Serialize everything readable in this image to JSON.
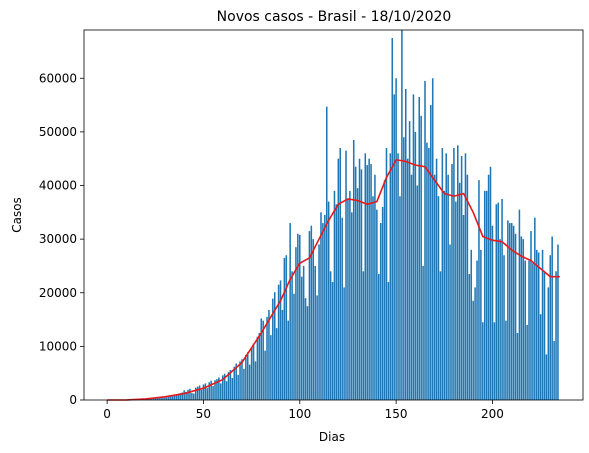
{
  "chart_data": {
    "type": "bar",
    "title": "Novos casos - Brasil - 18/10/2020",
    "xlabel": "Dias",
    "ylabel": "Casos",
    "xlim": [
      -12,
      247
    ],
    "ylim": [
      0,
      69000
    ],
    "xticks": [
      0,
      50,
      100,
      150,
      200
    ],
    "yticks": [
      0,
      10000,
      20000,
      30000,
      40000,
      50000,
      60000
    ],
    "grid": false,
    "bar_color": "#1f77b4",
    "line_color": "#e41a1c",
    "bars_note": "daily new cases for days 0..234",
    "bars": [
      0,
      0,
      0,
      0,
      0,
      0,
      0,
      0,
      0,
      0,
      5,
      10,
      15,
      20,
      30,
      40,
      50,
      70,
      90,
      110,
      130,
      160,
      190,
      220,
      260,
      300,
      340,
      390,
      440,
      500,
      560,
      620,
      700,
      780,
      870,
      960,
      1060,
      1170,
      1280,
      1400,
      1800,
      1500,
      1900,
      2100,
      1300,
      1200,
      2300,
      2500,
      2700,
      1900,
      2900,
      3100,
      2200,
      3300,
      3600,
      2600,
      3700,
      3900,
      4200,
      3100,
      4600,
      4900,
      3500,
      5200,
      5600,
      4100,
      6200,
      6800,
      4700,
      7200,
      7600,
      5800,
      8400,
      8900,
      6600,
      9800,
      10500,
      7200,
      11800,
      12500,
      15200,
      14800,
      9200,
      15500,
      16800,
      12100,
      18900,
      20100,
      13400,
      21500,
      22300,
      16800,
      26500,
      27000,
      14800,
      33000,
      24000,
      19800,
      28500,
      31000,
      30800,
      23000,
      25000,
      19000,
      17500,
      31500,
      32500,
      30000,
      25000,
      19500,
      29000,
      35000,
      33000,
      34500,
      54700,
      37000,
      24000,
      22000,
      39000,
      36500,
      45000,
      47000,
      34000,
      21000,
      46500,
      37500,
      39000,
      35000,
      48500,
      43500,
      39500,
      45000,
      43000,
      24000,
      46000,
      43800,
      45000,
      44000,
      38000,
      42000,
      35500,
      23500,
      33000,
      36000,
      41000,
      47000,
      22000,
      46000,
      67500,
      57000,
      60000,
      46000,
      38000,
      69000,
      49000,
      58000,
      45000,
      52000,
      42000,
      57000,
      50000,
      40000,
      56500,
      53000,
      25000,
      59500,
      48000,
      47000,
      55000,
      60000,
      42000,
      45000,
      38000,
      24000,
      47000,
      39000,
      46000,
      42000,
      29000,
      44000,
      47000,
      37000,
      47500,
      40500,
      45500,
      34500,
      46000,
      42000,
      23500,
      28000,
      18500,
      21000,
      26000,
      41000,
      28000,
      14500,
      39000,
      39000,
      42000,
      43500,
      32500,
      14500,
      36500,
      36800,
      30000,
      37500,
      27000,
      14800,
      33500,
      33000,
      33000,
      32500,
      31000,
      12500,
      35500,
      30500,
      30000,
      26000,
      14000,
      26000,
      31500,
      25500,
      34000,
      28000,
      27500,
      16000,
      28000,
      24000,
      8500,
      21000,
      27000,
      30500,
      11000,
      24000,
      29000
    ],
    "moving_average": {
      "x": [
        0,
        10,
        20,
        30,
        40,
        50,
        60,
        70,
        80,
        90,
        95,
        100,
        105,
        110,
        115,
        120,
        125,
        130,
        135,
        140,
        145,
        150,
        155,
        160,
        165,
        170,
        175,
        180,
        185,
        190,
        195,
        200,
        205,
        210,
        215,
        220,
        225,
        230,
        235
      ],
      "y": [
        0,
        0,
        200,
        600,
        1200,
        2200,
        3800,
        7000,
        12500,
        18500,
        22500,
        25500,
        26500,
        30000,
        33500,
        36500,
        37500,
        37200,
        36500,
        37000,
        41500,
        44800,
        44500,
        43800,
        43500,
        41000,
        38500,
        38000,
        38500,
        35000,
        30500,
        29800,
        29500,
        28000,
        26800,
        26000,
        24500,
        23000,
        23000
      ]
    }
  }
}
